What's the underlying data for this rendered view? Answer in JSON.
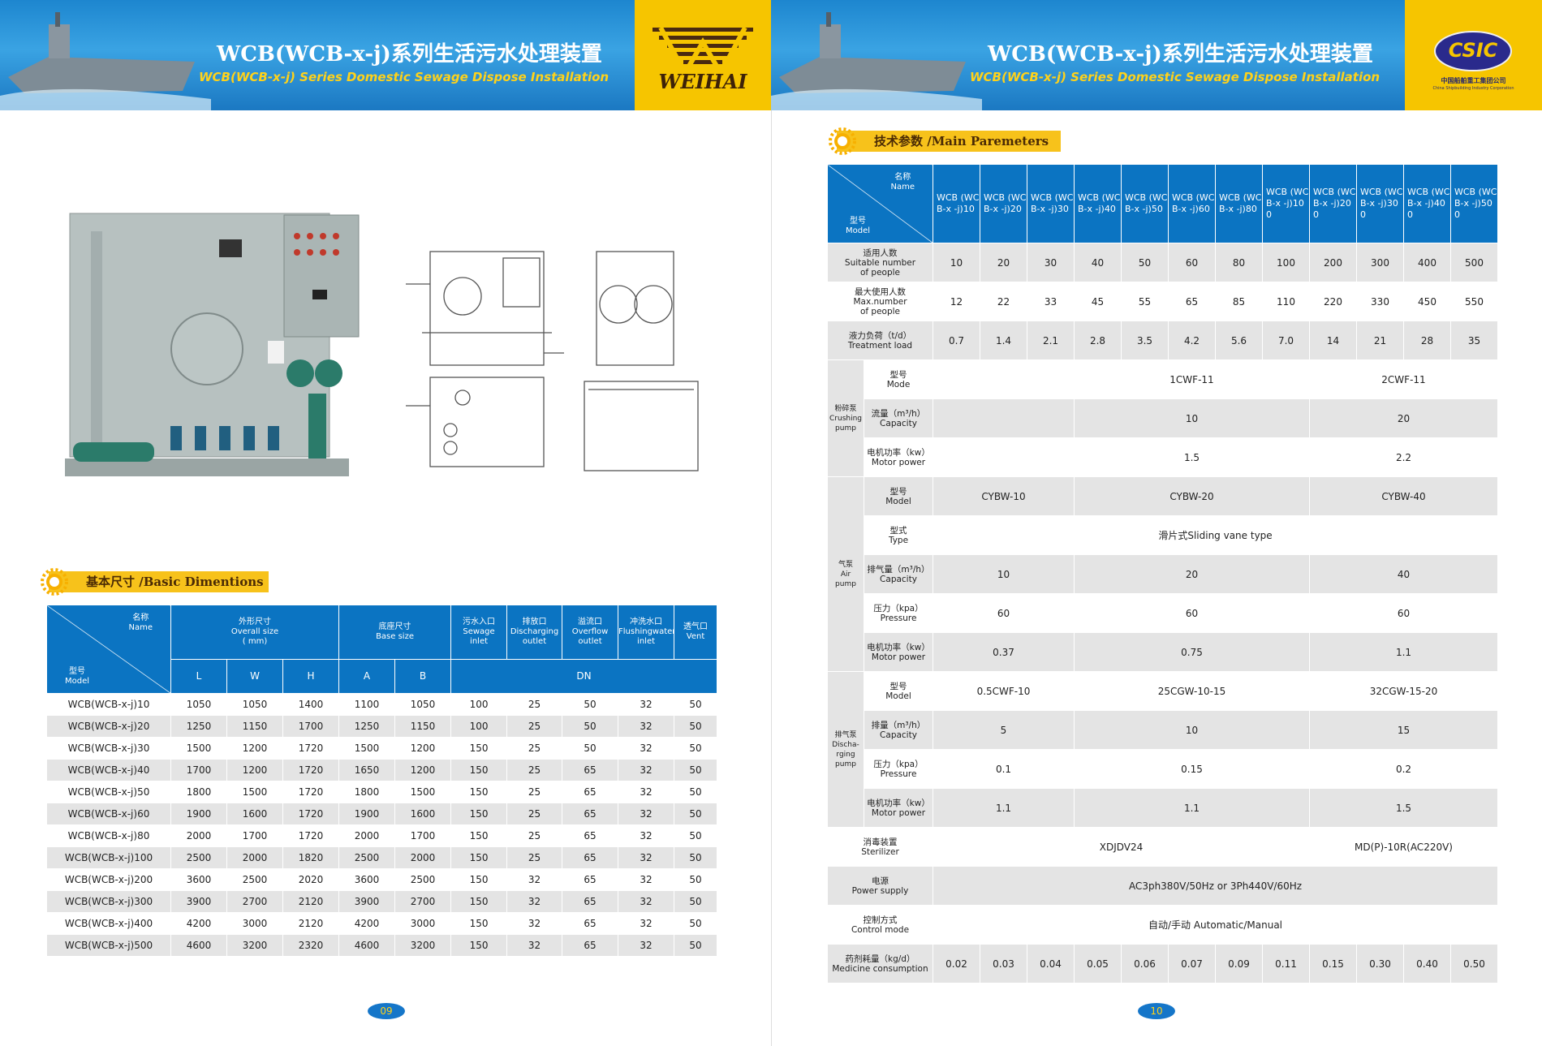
{
  "left_page": {
    "header": {
      "title_cn": "WCB(WCB-x-j)系列生活污水处理装置",
      "title_en": "WCB(WCB-x-j) Series Domestic Sewage Dispose Installation",
      "logo": "WEIHAI"
    },
    "section_title": "基本尺寸 /Basic Dimentions",
    "basic_table": {
      "corner_top": [
        "名称",
        "Name"
      ],
      "corner_bottom": [
        "型号",
        "Model"
      ],
      "groups": [
        {
          "label": [
            "外形尺寸",
            "Overall size",
            "( mm)"
          ],
          "sub": [
            "L",
            "W",
            "H"
          ]
        },
        {
          "label": [
            "底座尺寸",
            "Base size"
          ],
          "sub": [
            "A",
            "B"
          ]
        }
      ],
      "ports": [
        [
          "污水入口",
          "Sewage",
          "inlet"
        ],
        [
          "排放口",
          "Discharging",
          "outlet"
        ],
        [
          "溢流口",
          "Overflow",
          "outlet"
        ],
        [
          "冲洗水口",
          "Flushingwater",
          "inlet"
        ],
        [
          "透气口",
          "Vent"
        ]
      ],
      "ports_sub": "DN",
      "rows": [
        [
          "WCB(WCB-x-j)10",
          "1050",
          "1050",
          "1400",
          "1100",
          "1050",
          "100",
          "25",
          "50",
          "32",
          "50"
        ],
        [
          "WCB(WCB-x-j)20",
          "1250",
          "1150",
          "1700",
          "1250",
          "1150",
          "100",
          "25",
          "50",
          "32",
          "50"
        ],
        [
          "WCB(WCB-x-j)30",
          "1500",
          "1200",
          "1720",
          "1500",
          "1200",
          "150",
          "25",
          "50",
          "32",
          "50"
        ],
        [
          "WCB(WCB-x-j)40",
          "1700",
          "1200",
          "1720",
          "1650",
          "1200",
          "150",
          "25",
          "65",
          "32",
          "50"
        ],
        [
          "WCB(WCB-x-j)50",
          "1800",
          "1500",
          "1720",
          "1800",
          "1500",
          "150",
          "25",
          "65",
          "32",
          "50"
        ],
        [
          "WCB(WCB-x-j)60",
          "1900",
          "1600",
          "1720",
          "1900",
          "1600",
          "150",
          "25",
          "65",
          "32",
          "50"
        ],
        [
          "WCB(WCB-x-j)80",
          "2000",
          "1700",
          "1720",
          "2000",
          "1700",
          "150",
          "25",
          "65",
          "32",
          "50"
        ],
        [
          "WCB(WCB-x-j)100",
          "2500",
          "2000",
          "1820",
          "2500",
          "2000",
          "150",
          "25",
          "65",
          "32",
          "50"
        ],
        [
          "WCB(WCB-x-j)200",
          "3600",
          "2500",
          "2020",
          "3600",
          "2500",
          "150",
          "32",
          "65",
          "32",
          "50"
        ],
        [
          "WCB(WCB-x-j)300",
          "3900",
          "2700",
          "2120",
          "3900",
          "2700",
          "150",
          "32",
          "65",
          "32",
          "50"
        ],
        [
          "WCB(WCB-x-j)400",
          "4200",
          "3000",
          "2120",
          "4200",
          "3000",
          "150",
          "32",
          "65",
          "32",
          "50"
        ],
        [
          "WCB(WCB-x-j)500",
          "4600",
          "3200",
          "2320",
          "4600",
          "3200",
          "150",
          "32",
          "65",
          "32",
          "50"
        ]
      ]
    },
    "page_number": "09"
  },
  "right_page": {
    "header": {
      "title_cn": "WCB(WCB-x-j)系列生活污水处理装置",
      "title_en": "WCB(WCB-x-j) Series Domestic Sewage Dispose Installation",
      "logo": "CSIC",
      "company_cn": "中国船舶重工集团公司",
      "company_en": "China Shipbuilding Industry Corporation"
    },
    "section_title": "技术参数 /Main Paremeters",
    "param_table": {
      "corner_top": [
        "名称",
        "Name"
      ],
      "corner_bottom": [
        "型号",
        "Model"
      ],
      "models": [
        "WCB (WCB-x -j)10",
        "WCB (WCB-x -j)20",
        "WCB (WCB-x -j)30",
        "WCB (WCB-x -j)40",
        "WCB (WCB-x -j)50",
        "WCB (WCB-x -j)60",
        "WCB (WCB-x -j)80",
        "WCB (WCB-x -j)100",
        "WCB (WCB-x -j)200",
        "WCB (WCB-x -j)300",
        "WCB (WCB-x -j)400",
        "WCB (WCB-x -j)500"
      ],
      "body": [
        {
          "label": [
            "适用人数",
            "Suitable number",
            "of people"
          ],
          "cells": [
            "10",
            "20",
            "30",
            "40",
            "50",
            "60",
            "80",
            "100",
            "200",
            "300",
            "400",
            "500"
          ]
        },
        {
          "label": [
            "最大使用人数",
            "Max.number",
            "of people"
          ],
          "cells": [
            "12",
            "22",
            "33",
            "45",
            "55",
            "65",
            "85",
            "110",
            "220",
            "330",
            "450",
            "550"
          ]
        },
        {
          "label": [
            "液力负荷（t/d）",
            "Treatment load"
          ],
          "cells": [
            "0.7",
            "1.4",
            "2.1",
            "2.8",
            "3.5",
            "4.2",
            "5.6",
            "7.0",
            "14",
            "21",
            "28",
            "35"
          ]
        },
        {
          "group": [
            "粉碎泵",
            "Crushing",
            "pump"
          ],
          "rows": [
            {
              "label": [
                "型号",
                "Mode"
              ],
              "cells": [
                null,
                "1CWF-11",
                "2CWF-11"
              ]
            },
            {
              "label": [
                "流量（m³/h）",
                "Capacity"
              ],
              "cells": [
                null,
                "10",
                "20"
              ]
            },
            {
              "label": [
                "电机功率（kw）",
                "Motor power"
              ],
              "cells": [
                null,
                "1.5",
                "2.2"
              ]
            }
          ]
        },
        {
          "group": [
            "气泵",
            "Air",
            "pump"
          ],
          "rows": [
            {
              "label": [
                "型号",
                "Model"
              ],
              "cells": [
                "CYBW-10",
                "CYBW-20",
                "CYBW-40"
              ]
            },
            {
              "label": [
                "型式",
                "Type"
              ],
              "cells": [
                "滑片式Sliding vane type"
              ]
            },
            {
              "label": [
                "排气量（m³/h）",
                "Capacity"
              ],
              "cells": [
                "10",
                "20",
                "40"
              ]
            },
            {
              "label": [
                "压力（kpa）",
                "Pressure"
              ],
              "cells": [
                "60",
                "60",
                "60"
              ]
            },
            {
              "label": [
                "电机功率（kw）",
                "Motor power"
              ],
              "cells": [
                "0.37",
                "0.75",
                "1.1"
              ]
            }
          ]
        },
        {
          "group": [
            "排气泵",
            "Discha-",
            "rging",
            "pump"
          ],
          "rows": [
            {
              "label": [
                "型号",
                "Model"
              ],
              "cells": [
                "0.5CWF-10",
                "25CGW-10-15",
                "32CGW-15-20"
              ]
            },
            {
              "label": [
                "排量（m³/h）",
                "Capacity"
              ],
              "cells": [
                "5",
                "10",
                "15"
              ]
            },
            {
              "label": [
                "压力（kpa）",
                "Pressure"
              ],
              "cells": [
                "0.1",
                "0.15",
                "0.2"
              ]
            },
            {
              "label": [
                "电机功率（kw）",
                "Motor power"
              ],
              "cells": [
                "1.1",
                "1.1",
                "1.5"
              ]
            }
          ]
        },
        {
          "label": [
            "消毒装置",
            "Sterilizer"
          ],
          "cells": [
            "XDJDV24",
            "MD(P)-10R(AC220V)"
          ]
        },
        {
          "label": [
            "电源",
            "Power supply"
          ],
          "cells": [
            "AC3ph380V/50Hz or 3Ph440V/60Hz"
          ]
        },
        {
          "label": [
            "控制方式",
            "Control mode"
          ],
          "cells": [
            "自动/手动 Automatic/Manual"
          ]
        },
        {
          "label": [
            "药剂耗量（kg/d）",
            "Medicine consumption"
          ],
          "cells": [
            "0.02",
            "0.03",
            "0.04",
            "0.05",
            "0.06",
            "0.07",
            "0.09",
            "0.11",
            "0.15",
            "0.30",
            "0.40",
            "0.50"
          ]
        }
      ]
    },
    "page_number": "10"
  }
}
